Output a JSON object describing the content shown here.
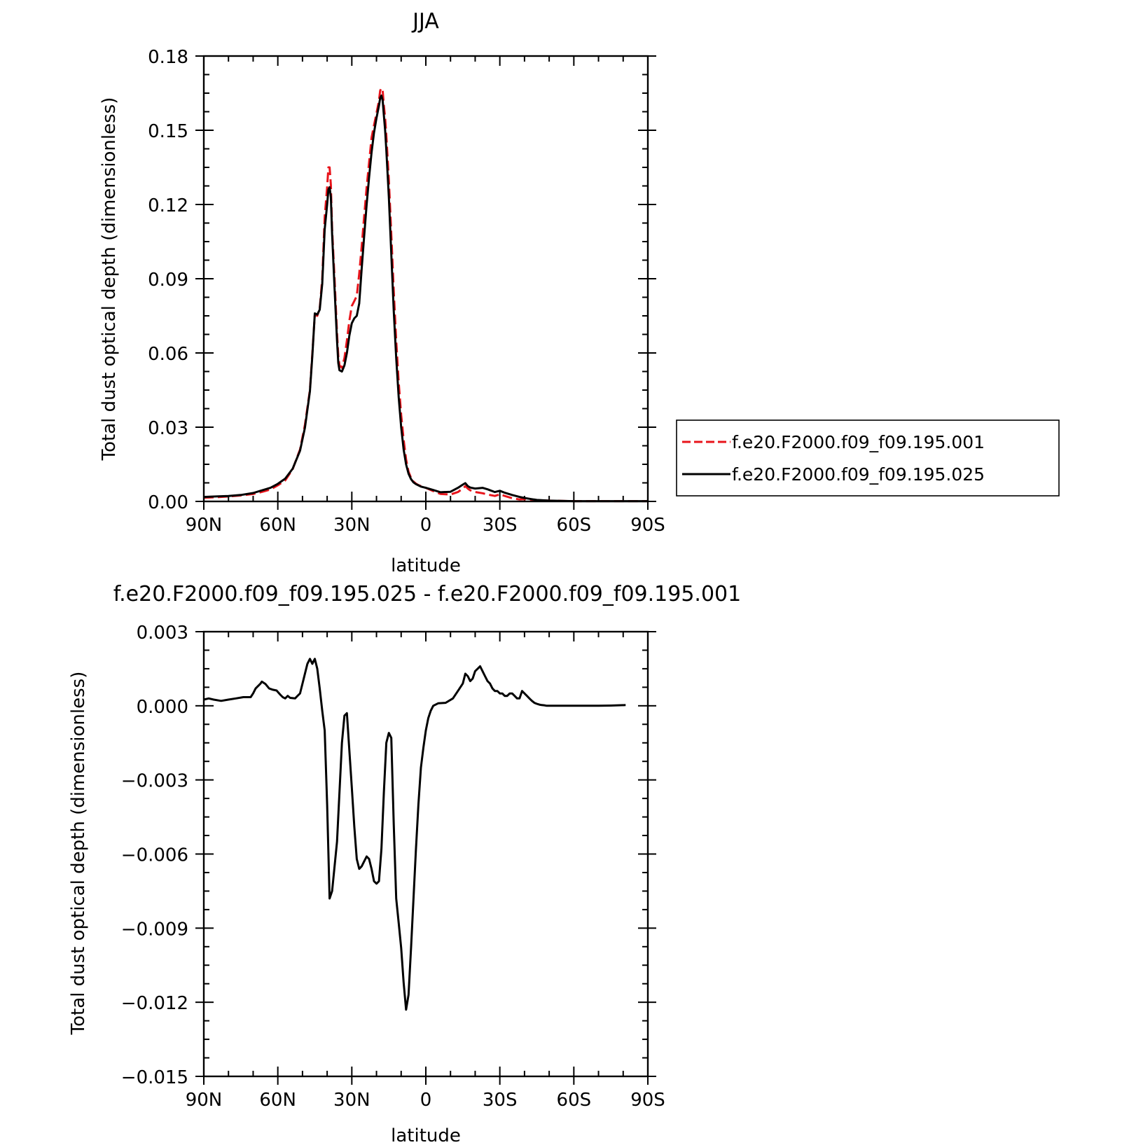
{
  "chart_data": [
    {
      "type": "line",
      "title": "JJA",
      "xlabel": "latitude",
      "ylabel": "Total dust optical depth (dimensionless)",
      "xlim": [
        90,
        -90
      ],
      "ylim": [
        0,
        0.18
      ],
      "x_ticks": [
        {
          "value": 90,
          "label": "90N"
        },
        {
          "value": 60,
          "label": "60N"
        },
        {
          "value": 30,
          "label": "30N"
        },
        {
          "value": 0,
          "label": "0"
        },
        {
          "value": -30,
          "label": "30S"
        },
        {
          "value": -60,
          "label": "60S"
        },
        {
          "value": -90,
          "label": "90S"
        }
      ],
      "y_ticks": [
        {
          "value": 0,
          "label": "0.00"
        },
        {
          "value": 0.03,
          "label": "0.03"
        },
        {
          "value": 0.06,
          "label": "0.06"
        },
        {
          "value": 0.09,
          "label": "0.09"
        },
        {
          "value": 0.12,
          "label": "0.12"
        },
        {
          "value": 0.15,
          "label": "0.15"
        },
        {
          "value": 0.18,
          "label": "0.18"
        }
      ],
      "legend_position": "right",
      "series": [
        {
          "name": "f.e20.F2000.f09_f09.195.001",
          "color": "#e8141b",
          "style": "dashed",
          "x": [
            90,
            85,
            80,
            75,
            70,
            67,
            63,
            60,
            57,
            54,
            51,
            49,
            47,
            46,
            45,
            44,
            43,
            42,
            41,
            40,
            39.5,
            39,
            38.5,
            38,
            37,
            36,
            35.5,
            35,
            34,
            33,
            32,
            31,
            30,
            29,
            28,
            27,
            26,
            25,
            24,
            23,
            22,
            21,
            20,
            19,
            18.5,
            18,
            17.5,
            17,
            16.5,
            16,
            15,
            14,
            13,
            12,
            11,
            10,
            9,
            8,
            7,
            6,
            5,
            4,
            3,
            2,
            0,
            -3,
            -6,
            -10,
            -13,
            -15,
            -16,
            -17,
            -18,
            -20,
            -23,
            -25,
            -28,
            -30,
            -32,
            -35,
            -38,
            -40,
            -43,
            -45,
            -50,
            -55,
            -60,
            -65,
            -70,
            -75,
            -80,
            -85,
            -90
          ],
          "y": [
            0.0015,
            0.0017,
            0.002,
            0.0024,
            0.003,
            0.0037,
            0.0048,
            0.0065,
            0.0085,
            0.013,
            0.021,
            0.031,
            0.045,
            0.06,
            0.0755,
            0.075,
            0.078,
            0.09,
            0.115,
            0.127,
            0.135,
            0.135,
            0.128,
            0.11,
            0.09,
            0.068,
            0.059,
            0.055,
            0.054,
            0.058,
            0.065,
            0.073,
            0.079,
            0.081,
            0.083,
            0.092,
            0.103,
            0.115,
            0.127,
            0.137,
            0.147,
            0.152,
            0.157,
            0.162,
            0.166,
            0.167,
            0.166,
            0.16,
            0.155,
            0.148,
            0.13,
            0.108,
            0.085,
            0.065,
            0.048,
            0.035,
            0.025,
            0.017,
            0.012,
            0.0095,
            0.008,
            0.0072,
            0.0066,
            0.0062,
            0.0055,
            0.0042,
            0.003,
            0.0028,
            0.0038,
            0.0052,
            0.0062,
            0.0052,
            0.0045,
            0.0038,
            0.0033,
            0.0028,
            0.0022,
            0.0029,
            0.0022,
            0.0013,
            0.0008,
            0.0009,
            0.0007,
            0.0005,
            0.0003,
            0.0002,
            0.0001,
            0.0001,
            0.0001,
            0.0001,
            0.0001,
            0.0001,
            0.0001
          ]
        },
        {
          "name": "f.e20.F2000.f09_f09.195.025",
          "color": "#000000",
          "style": "solid",
          "x": [
            90,
            85,
            80,
            75,
            70,
            67,
            63,
            60,
            57,
            54,
            51,
            49,
            47,
            46,
            45,
            44,
            43,
            42,
            41,
            40,
            39.5,
            39,
            38.5,
            38,
            37,
            36,
            35.5,
            35,
            34,
            33,
            32,
            31,
            30,
            29,
            28,
            27,
            26,
            25,
            24,
            23,
            22,
            21,
            20,
            19,
            18.5,
            18,
            17.5,
            17,
            16.5,
            16,
            15,
            14,
            13,
            12,
            11,
            10,
            9,
            8,
            7,
            6,
            5,
            4,
            3,
            2,
            0,
            -3,
            -6,
            -10,
            -13,
            -15,
            -16,
            -17,
            -18,
            -20,
            -23,
            -25,
            -28,
            -30,
            -32,
            -35,
            -38,
            -40,
            -43,
            -45,
            -50,
            -55,
            -60,
            -65,
            -70,
            -75,
            -80,
            -85,
            -90
          ],
          "y": [
            0.0018,
            0.002,
            0.0022,
            0.0026,
            0.0034,
            0.0043,
            0.0055,
            0.0071,
            0.0092,
            0.0132,
            0.0205,
            0.0298,
            0.0445,
            0.059,
            0.076,
            0.0755,
            0.0775,
            0.088,
            0.11,
            0.12,
            0.126,
            0.127,
            0.123,
            0.108,
            0.086,
            0.065,
            0.056,
            0.053,
            0.0525,
            0.055,
            0.06,
            0.067,
            0.072,
            0.074,
            0.075,
            0.08,
            0.094,
            0.107,
            0.12,
            0.131,
            0.141,
            0.149,
            0.155,
            0.16,
            0.163,
            0.164,
            0.162,
            0.156,
            0.15,
            0.142,
            0.123,
            0.1,
            0.077,
            0.058,
            0.042,
            0.03,
            0.021,
            0.015,
            0.0112,
            0.009,
            0.0077,
            0.007,
            0.0065,
            0.006,
            0.0055,
            0.0046,
            0.0037,
            0.0039,
            0.0055,
            0.0068,
            0.0074,
            0.0062,
            0.0056,
            0.0052,
            0.0055,
            0.0049,
            0.0038,
            0.0043,
            0.0035,
            0.0026,
            0.0018,
            0.0014,
            0.0009,
            0.0006,
            0.0003,
            0.0002,
            0.0001,
            0.0001,
            0.0001,
            0.0001,
            0.0001,
            0.0001,
            0.0001
          ]
        }
      ]
    },
    {
      "type": "line",
      "title": "f.e20.F2000.f09_f09.195.025 - f.e20.F2000.f09_f09.195.001",
      "xlabel": "latitude",
      "ylabel": "Total dust optical depth (dimensionless)",
      "xlim": [
        90,
        -90
      ],
      "ylim": [
        -0.015,
        0.003
      ],
      "x_ticks": [
        {
          "value": 90,
          "label": "90N"
        },
        {
          "value": 60,
          "label": "60N"
        },
        {
          "value": 30,
          "label": "30N"
        },
        {
          "value": 0,
          "label": "0"
        },
        {
          "value": -30,
          "label": "30S"
        },
        {
          "value": -60,
          "label": "60S"
        },
        {
          "value": -90,
          "label": "90S"
        }
      ],
      "y_ticks": [
        {
          "value": -0.015,
          "label": "−0.015"
        },
        {
          "value": -0.012,
          "label": "−0.012"
        },
        {
          "value": -0.009,
          "label": "−0.009"
        },
        {
          "value": -0.006,
          "label": "−0.006"
        },
        {
          "value": -0.003,
          "label": "−0.003"
        },
        {
          "value": 0,
          "label": "0.000"
        },
        {
          "value": 0.003,
          "label": "0.003"
        }
      ],
      "series": [
        {
          "name": "",
          "color": "#000000",
          "style": "solid",
          "x": [
            90,
            88,
            86,
            83,
            80,
            77,
            74,
            71,
            70,
            69,
            68,
            67,
            66.5,
            65,
            63.5,
            62,
            60.5,
            59,
            58,
            57,
            56,
            55,
            53,
            52,
            51,
            50,
            49,
            48,
            47,
            46.5,
            46,
            45.5,
            45,
            44,
            43,
            42,
            41,
            40,
            39,
            38,
            37,
            36,
            35,
            34,
            33,
            32,
            31,
            30,
            29,
            28,
            27,
            26,
            25,
            24,
            23,
            22,
            21,
            20,
            19,
            18,
            17,
            16,
            15,
            14,
            13,
            12,
            11,
            10,
            9,
            8,
            7,
            6,
            5,
            4,
            3,
            2,
            1,
            0,
            -1,
            -2,
            -3,
            -5,
            -8,
            -11,
            -13,
            -15,
            -16,
            -17,
            -18,
            -19,
            -20,
            -21,
            -22,
            -23,
            -24,
            -25,
            -26,
            -27,
            -28,
            -29,
            -30,
            -31,
            -32,
            -33,
            -34,
            -35,
            -36,
            -37,
            -38,
            -39,
            -40,
            -41,
            -42,
            -43,
            -44,
            -45,
            -46,
            -47,
            -48,
            -49,
            -50,
            -52,
            -55,
            -60,
            -65,
            -70,
            -75,
            -81
          ],
          "y": [
            0.00025,
            0.0003,
            0.00025,
            0.0002,
            0.00025,
            0.0003,
            0.00035,
            0.00035,
            0.0005,
            0.0007,
            0.0008,
            0.0009,
            0.00098,
            0.00088,
            0.0007,
            0.00065,
            0.00062,
            0.00045,
            0.00035,
            0.0003,
            0.0004,
            0.00032,
            0.0003,
            0.0004,
            0.0005,
            0.0009,
            0.0013,
            0.0017,
            0.0019,
            0.0018,
            0.0017,
            0.0018,
            0.0019,
            0.0015,
            0.0007,
            -0.0002,
            -0.001,
            -0.004,
            -0.0078,
            -0.0075,
            -0.0065,
            -0.0055,
            -0.0035,
            -0.0015,
            -0.0004,
            -0.0003,
            -0.0018,
            -0.0033,
            -0.0049,
            -0.0062,
            -0.0066,
            -0.0065,
            -0.0063,
            -0.0061,
            -0.0062,
            -0.0066,
            -0.0071,
            -0.0072,
            -0.0071,
            -0.0058,
            -0.0035,
            -0.0015,
            -0.0011,
            -0.0013,
            -0.0048,
            -0.0078,
            -0.0088,
            -0.0098,
            -0.0112,
            -0.0123,
            -0.0117,
            -0.0098,
            -0.0078,
            -0.0058,
            -0.004,
            -0.0025,
            -0.0017,
            -0.001,
            -0.0005,
            -0.0002,
            0.0,
            0.0001,
            0.00012,
            0.0003,
            0.0006,
            0.0009,
            0.0013,
            0.0012,
            0.001,
            0.0011,
            0.0014,
            0.0015,
            0.0016,
            0.0014,
            0.0012,
            0.001,
            0.0009,
            0.0007,
            0.0006,
            0.0006,
            0.0005,
            0.0005,
            0.0004,
            0.0004,
            0.0005,
            0.0005,
            0.0004,
            0.0003,
            0.0003,
            0.0006,
            0.0005,
            0.0004,
            0.0003,
            0.0002,
            0.00012,
            8e-05,
            5e-05,
            3e-05,
            2e-05,
            0.0,
            0.0,
            0.0,
            0.0,
            0.0,
            0.0,
            0.0,
            1e-05,
            3e-05
          ]
        }
      ]
    }
  ]
}
